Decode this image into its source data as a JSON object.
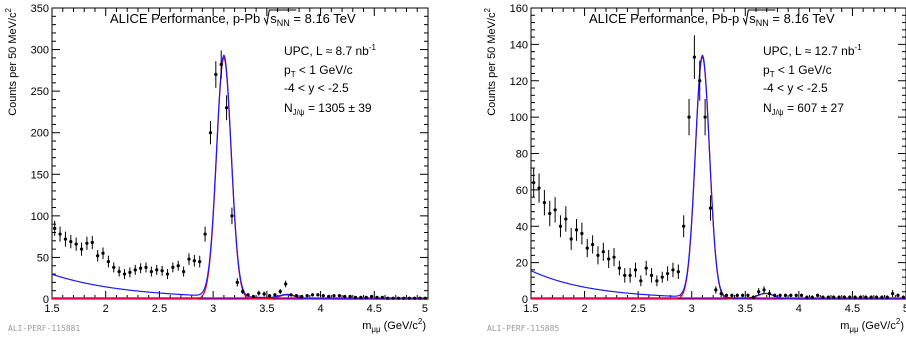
{
  "chart_data": [
    {
      "type": "scatter",
      "title": "ALICE Performance, p-Pb",
      "energy_label": "= 8.16 TeV",
      "ylabel": "Counts per 50 MeV/c",
      "xlabel": "m",
      "xlabel_unit": "(GeV/c",
      "xlim": [
        1.5,
        5
      ],
      "ylim": [
        0,
        350
      ],
      "xticks": [
        "1.5",
        "2",
        "2.5",
        "3",
        "3.5",
        "4",
        "4.5",
        "5"
      ],
      "yticks": [
        "0",
        "50",
        "100",
        "150",
        "200",
        "250",
        "300",
        "350"
      ],
      "info": [
        "UPC, L ≈ 8.7 nb",
        "p",
        "-4 < y < -2.5",
        "N"
      ],
      "pt_cut": "< 1 GeV/c",
      "n_value": "= 1305 ± 39",
      "panel_id": "ALI-PERF-115881",
      "x": [
        1.525,
        1.575,
        1.625,
        1.675,
        1.725,
        1.775,
        1.825,
        1.875,
        1.925,
        1.975,
        2.025,
        2.075,
        2.125,
        2.175,
        2.225,
        2.275,
        2.325,
        2.375,
        2.425,
        2.475,
        2.525,
        2.575,
        2.625,
        2.675,
        2.725,
        2.775,
        2.825,
        2.875,
        2.925,
        2.975,
        3.025,
        3.075,
        3.125,
        3.175,
        3.225,
        3.275,
        3.325,
        3.375,
        3.425,
        3.475,
        3.525,
        3.575,
        3.625,
        3.675,
        3.725,
        3.775,
        3.825,
        3.875,
        3.925,
        3.975,
        4.025,
        4.075,
        4.125,
        4.175,
        4.225,
        4.275,
        4.325,
        4.375,
        4.425,
        4.475,
        4.525,
        4.575,
        4.625,
        4.675,
        4.725,
        4.775,
        4.825,
        4.875,
        4.925,
        4.975
      ],
      "y": [
        85,
        78,
        72,
        69,
        66,
        60,
        67,
        68,
        52,
        55,
        45,
        38,
        33,
        30,
        32,
        35,
        37,
        38,
        33,
        35,
        34,
        30,
        38,
        40,
        33,
        48,
        46,
        45,
        78,
        200,
        270,
        282,
        230,
        100,
        20,
        9,
        5,
        3,
        7,
        6,
        4,
        5,
        9,
        18,
        5,
        4,
        3,
        4,
        5,
        5,
        4,
        3,
        4,
        4,
        3,
        3,
        2,
        2,
        2,
        3,
        2,
        2,
        1,
        1,
        1,
        1,
        1,
        1,
        1,
        1
      ],
      "err": [
        9,
        9,
        9,
        8,
        8,
        8,
        8,
        8,
        7,
        7,
        7,
        6,
        6,
        6,
        6,
        6,
        6,
        6,
        6,
        6,
        6,
        6,
        6,
        6,
        6,
        7,
        7,
        7,
        9,
        14,
        16,
        17,
        15,
        10,
        5,
        3,
        2,
        2,
        3,
        3,
        2,
        2,
        3,
        4,
        2,
        2,
        2,
        2,
        2,
        2,
        2,
        2,
        2,
        2,
        2,
        2,
        1,
        1,
        1,
        2,
        1,
        1,
        1,
        1,
        1,
        1,
        1,
        1,
        1,
        1
      ],
      "fit": {
        "jpsi_amp": 290,
        "jpsi_mean": 3.1,
        "jpsi_sigma": 0.068,
        "psi2s_amp": 5,
        "psi2s_mean": 3.69,
        "psi2s_sigma": 0.075,
        "bg_amp": 250,
        "bg_lambda": 1.42,
        "bg_cut": 3.5
      },
      "colors": {
        "data": "#000000",
        "total_fit": "#1a1aff",
        "signal_fit": "#ff0000",
        "background_fit": "#cc00cc"
      }
    },
    {
      "type": "scatter",
      "title": "ALICE Performance, Pb-p",
      "energy_label": "= 8.16 TeV",
      "ylabel": "Counts per 50 MeV/c",
      "xlabel": "m",
      "xlabel_unit": "(GeV/c",
      "xlim": [
        1.5,
        5
      ],
      "ylim": [
        0,
        160
      ],
      "xticks": [
        "1.5",
        "2",
        "2.5",
        "3",
        "3.5",
        "4",
        "4.5",
        "5"
      ],
      "yticks": [
        "0",
        "20",
        "40",
        "60",
        "80",
        "100",
        "120",
        "140",
        "160"
      ],
      "info": [
        "UPC, L ≈ 12.7 nb",
        "p",
        "-4 < y < -2.5",
        "N"
      ],
      "pt_cut": "< 1 GeV/c",
      "n_value": "= 607 ± 27",
      "panel_id": "ALI-PERF-115885",
      "x": [
        1.525,
        1.575,
        1.625,
        1.675,
        1.725,
        1.775,
        1.825,
        1.875,
        1.925,
        1.975,
        2.025,
        2.075,
        2.125,
        2.175,
        2.225,
        2.275,
        2.325,
        2.375,
        2.425,
        2.475,
        2.525,
        2.575,
        2.625,
        2.675,
        2.725,
        2.775,
        2.825,
        2.875,
        2.925,
        2.975,
        3.025,
        3.075,
        3.125,
        3.175,
        3.225,
        3.275,
        3.325,
        3.375,
        3.425,
        3.475,
        3.525,
        3.575,
        3.625,
        3.675,
        3.725,
        3.775,
        3.825,
        3.875,
        3.925,
        3.975,
        4.025,
        4.075,
        4.125,
        4.175,
        4.225,
        4.275,
        4.325,
        4.375,
        4.425,
        4.475,
        4.525,
        4.575,
        4.625,
        4.675,
        4.725,
        4.775,
        4.825,
        4.875,
        4.925,
        4.975
      ],
      "y": [
        64,
        61,
        53,
        47,
        49,
        40,
        44,
        33,
        38,
        36,
        28,
        30,
        24,
        26,
        22,
        23,
        17,
        13,
        13,
        16,
        10,
        17,
        13,
        10,
        12,
        14,
        16,
        15,
        40,
        100,
        133,
        120,
        100,
        50,
        5,
        3,
        2,
        2,
        2,
        2,
        2,
        1,
        4,
        5,
        3,
        2,
        2,
        2,
        2,
        2,
        2,
        1,
        1,
        2,
        1,
        1,
        1,
        1,
        1,
        1,
        1,
        1,
        1,
        1,
        1,
        1,
        1,
        3,
        2,
        1
      ],
      "err": [
        8,
        8,
        7,
        7,
        7,
        6,
        7,
        6,
        6,
        6,
        5,
        5,
        5,
        5,
        5,
        5,
        4,
        4,
        4,
        4,
        3,
        4,
        4,
        3,
        3,
        4,
        4,
        4,
        6,
        10,
        12,
        11,
        10,
        7,
        2,
        2,
        1,
        1,
        1,
        1,
        1,
        1,
        2,
        2,
        2,
        1,
        1,
        1,
        1,
        1,
        1,
        1,
        1,
        1,
        1,
        1,
        1,
        1,
        1,
        1,
        1,
        1,
        1,
        1,
        1,
        1,
        1,
        2,
        1,
        1
      ],
      "fit": {
        "jpsi_amp": 133,
        "jpsi_mean": 3.1,
        "jpsi_sigma": 0.066,
        "psi2s_amp": 3,
        "psi2s_mean": 3.69,
        "psi2s_sigma": 0.075,
        "bg_amp": 215,
        "bg_lambda": 1.75,
        "bg_cut": 3.4
      },
      "colors": {
        "data": "#000000",
        "total_fit": "#1a1aff",
        "signal_fit": "#ff0000",
        "background_fit": "#cc00cc"
      }
    }
  ]
}
